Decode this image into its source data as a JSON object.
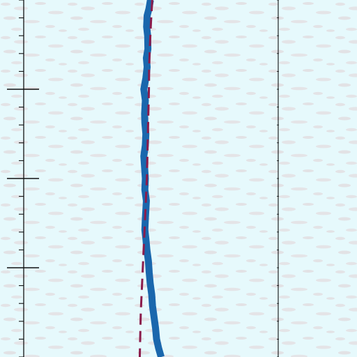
{
  "chart_data": {
    "type": "line",
    "title": "",
    "xlabel": "",
    "ylabel": "",
    "grid": false,
    "legend": "none",
    "xlim": [
      0,
      10
    ],
    "ylim": [
      0,
      16
    ],
    "x_ticks": [],
    "y_ticks": [],
    "series": [
      {
        "style": "solid",
        "color": "#1a67ad",
        "points": [
          [
            4.98,
            16.0
          ],
          [
            4.92,
            15.6
          ],
          [
            4.85,
            15.3
          ],
          [
            4.83,
            14.8
          ],
          [
            4.87,
            14.4
          ],
          [
            4.88,
            13.8
          ],
          [
            4.82,
            13.4
          ],
          [
            4.85,
            13.0
          ],
          [
            4.8,
            12.5
          ],
          [
            4.72,
            12.0
          ],
          [
            4.78,
            11.5
          ],
          [
            4.75,
            10.9
          ],
          [
            4.76,
            10.5
          ],
          [
            4.8,
            10.0
          ],
          [
            4.78,
            9.5
          ],
          [
            4.72,
            9.0
          ],
          [
            4.75,
            8.5
          ],
          [
            4.78,
            8.0
          ],
          [
            4.76,
            7.5
          ],
          [
            4.82,
            7.0
          ],
          [
            4.8,
            6.6
          ],
          [
            4.78,
            6.2
          ],
          [
            4.76,
            5.7
          ],
          [
            4.8,
            5.3
          ],
          [
            4.84,
            4.8
          ],
          [
            4.9,
            4.3
          ],
          [
            4.93,
            3.8
          ],
          [
            4.97,
            3.3
          ],
          [
            5.03,
            2.8
          ],
          [
            5.06,
            2.3
          ],
          [
            5.12,
            1.8
          ],
          [
            5.18,
            1.3
          ],
          [
            5.22,
            0.8
          ],
          [
            5.3,
            0.4
          ],
          [
            5.4,
            0.0
          ]
        ]
      },
      {
        "style": "dashed",
        "color": "#8b1c4c",
        "points": [
          [
            5.05,
            16.0
          ],
          [
            5.0,
            15.0
          ],
          [
            4.96,
            14.0
          ],
          [
            4.93,
            13.0
          ],
          [
            4.92,
            12.0
          ],
          [
            4.9,
            11.0
          ],
          [
            4.88,
            10.0
          ],
          [
            4.86,
            9.0
          ],
          [
            4.84,
            8.0
          ],
          [
            4.8,
            7.0
          ],
          [
            4.76,
            6.0
          ],
          [
            4.72,
            5.0
          ],
          [
            4.68,
            4.0
          ],
          [
            4.64,
            3.0
          ],
          [
            4.6,
            2.0
          ],
          [
            4.58,
            1.0
          ],
          [
            4.56,
            0.0
          ]
        ]
      }
    ]
  }
}
